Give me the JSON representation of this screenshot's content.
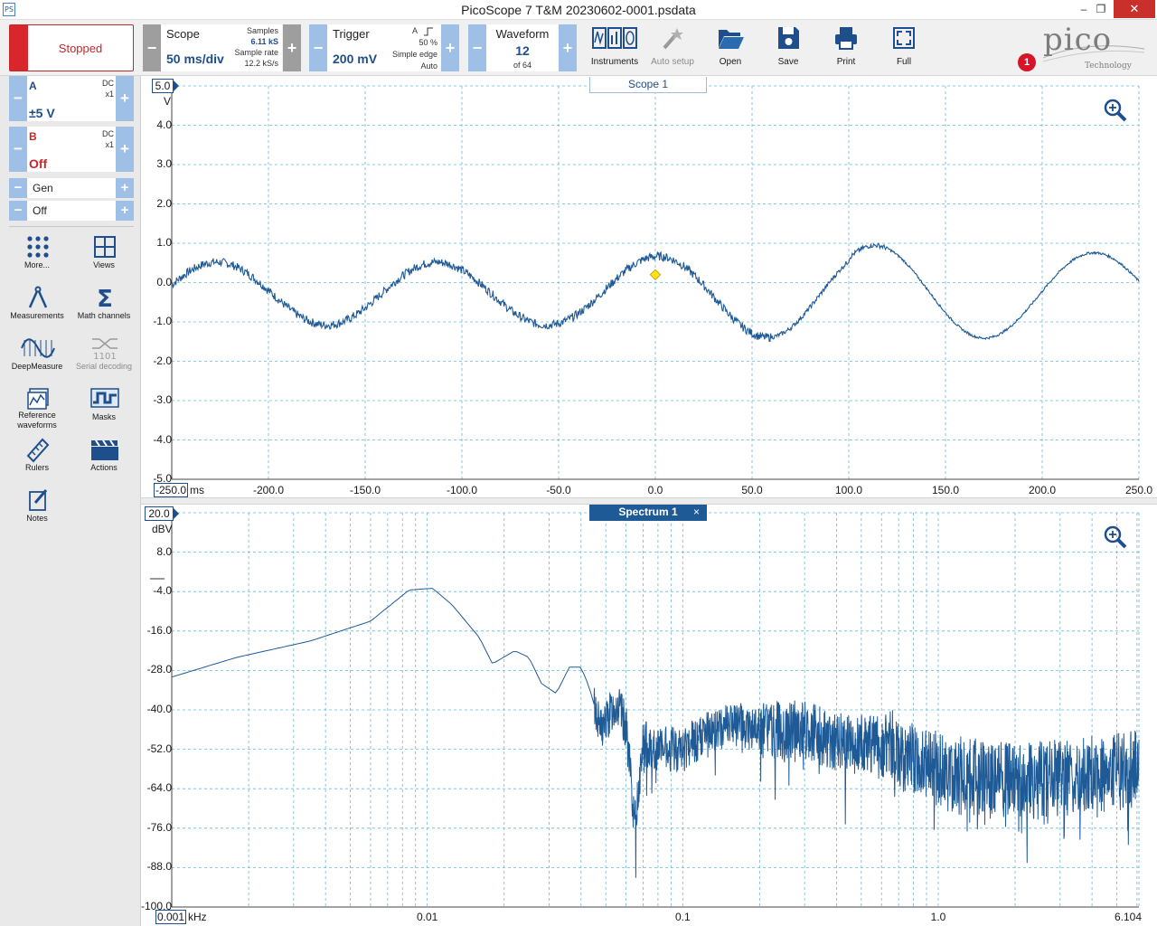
{
  "window": {
    "title": "PicoScope 7 T&M 20230602-0001.psdata",
    "app_icon": "PS"
  },
  "toolbar": {
    "run_state": "Stopped",
    "scope": {
      "label": "Scope",
      "timebase": "50 ms/div",
      "samples_label": "Samples",
      "samples_value": "6.11 kS",
      "rate_label": "Sample rate",
      "rate_value": "12.2 kS/s"
    },
    "trigger": {
      "label": "Trigger",
      "level": "200 mV",
      "channel": "A",
      "percent": "50 %",
      "type": "Simple edge",
      "mode": "Auto"
    },
    "waveform": {
      "label": "Waveform",
      "index": "12",
      "of": "of 64"
    },
    "tools": [
      {
        "id": "instruments",
        "label": "Instruments"
      },
      {
        "id": "auto-setup",
        "label": "Auto setup"
      },
      {
        "id": "open",
        "label": "Open"
      },
      {
        "id": "save",
        "label": "Save"
      },
      {
        "id": "print",
        "label": "Print"
      },
      {
        "id": "full",
        "label": "Full"
      }
    ],
    "logo": {
      "word": "pico",
      "sub": "Technology"
    },
    "notification_count": "1"
  },
  "channels": [
    {
      "name": "A",
      "range": "±5 V",
      "coupling": "DC",
      "probe": "x1",
      "color": "#1f4e8c"
    },
    {
      "name": "B",
      "range": "Off",
      "coupling": "DC",
      "probe": "x1",
      "color": "#c42828"
    }
  ],
  "generator": {
    "label": "Gen",
    "state": "Off"
  },
  "side_tools": [
    {
      "id": "more",
      "label": "More..."
    },
    {
      "id": "views",
      "label": "Views"
    },
    {
      "id": "measurements",
      "label": "Measurements"
    },
    {
      "id": "math-channels",
      "label": "Math channels"
    },
    {
      "id": "deepmeasure",
      "label": "DeepMeasure"
    },
    {
      "id": "serial-decoding",
      "label": "Serial decoding"
    },
    {
      "id": "reference-waveforms",
      "label": "Reference waveforms"
    },
    {
      "id": "masks",
      "label": "Masks"
    },
    {
      "id": "rulers",
      "label": "Rulers"
    },
    {
      "id": "actions",
      "label": "Actions"
    },
    {
      "id": "notes",
      "label": "Notes"
    }
  ],
  "scope_view": {
    "tab": "Scope 1",
    "y_top_box": "5.0",
    "y_unit": "V",
    "y_ticks": [
      "4.0",
      "3.0",
      "2.0",
      "1.0",
      "0.0",
      "-1.0",
      "-2.0",
      "-3.0",
      "-4.0",
      "-5.0"
    ],
    "x_first_box": "-250.0",
    "x_unit": "ms",
    "x_ticks": [
      "-200.0",
      "-150.0",
      "-100.0",
      "-50.0",
      "0.0",
      "50.0",
      "100.0",
      "150.0",
      "200.0",
      "250.0"
    ]
  },
  "spectrum_view": {
    "tab": "Spectrum 1",
    "close": "×",
    "y_top_box": "20.0",
    "y_unit": "dBV",
    "y_ticks": [
      "8.0",
      "-4.0",
      "-16.0",
      "-28.0",
      "-40.0",
      "-52.0",
      "-64.0",
      "-76.0",
      "-88.0",
      "-100.0"
    ],
    "x_first_box": "0.001",
    "x_unit": "kHz",
    "x_ticks": [
      "0.01",
      "0.1",
      "1.0",
      "6.104"
    ]
  },
  "colors": {
    "accent": "#1f4e8c",
    "trace": "#1e5a96",
    "grid": "#6fb7cf",
    "stop": "#d9262c",
    "step": "#9ec0e6"
  }
}
